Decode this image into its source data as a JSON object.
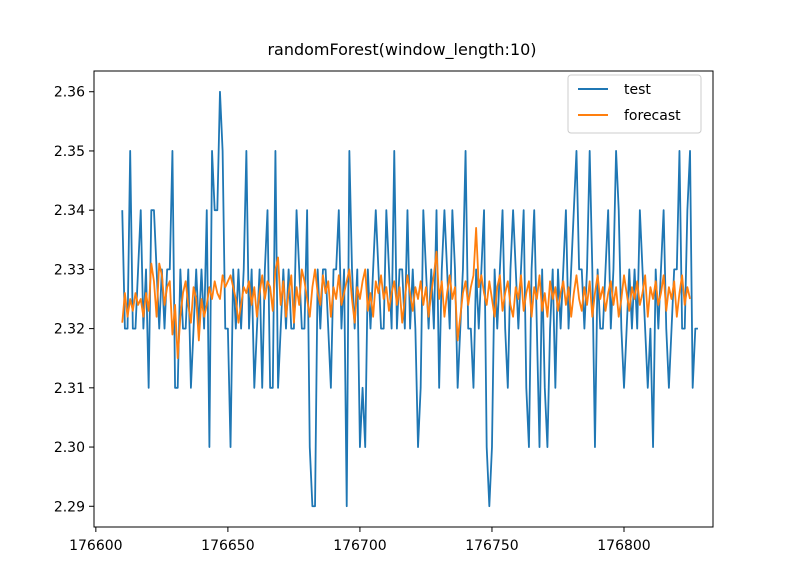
{
  "chart_data": {
    "type": "line",
    "title": "randomForest(window_length:10)",
    "xlabel": "",
    "ylabel": "",
    "xlim": [
      176599.3,
      176833.7
    ],
    "ylim": [
      2.2865,
      2.3635
    ],
    "xticks": [
      176600,
      176650,
      176700,
      176750,
      176800
    ],
    "yticks": [
      2.29,
      2.3,
      2.31,
      2.32,
      2.33,
      2.34,
      2.35,
      2.36
    ],
    "ytick_labels": [
      "2.29",
      "2.30",
      "2.31",
      "2.32",
      "2.33",
      "2.34",
      "2.35",
      "2.36"
    ],
    "legend": {
      "location": "top-right",
      "entries": [
        "test",
        "forecast"
      ]
    },
    "x_start": 176610,
    "colors": {
      "test": "#1f77b4",
      "forecast": "#ff7f0e"
    },
    "series": [
      {
        "name": "test",
        "color": "#1f77b4",
        "values": [
          2.34,
          2.32,
          2.32,
          2.35,
          2.32,
          2.32,
          2.33,
          2.34,
          2.32,
          2.33,
          2.31,
          2.34,
          2.34,
          2.33,
          2.32,
          2.33,
          2.32,
          2.33,
          2.33,
          2.35,
          2.31,
          2.31,
          2.33,
          2.32,
          2.32,
          2.33,
          2.31,
          2.32,
          2.33,
          2.32,
          2.33,
          2.32,
          2.34,
          2.3,
          2.35,
          2.34,
          2.34,
          2.36,
          2.35,
          2.32,
          2.32,
          2.3,
          2.33,
          2.32,
          2.33,
          2.32,
          2.33,
          2.35,
          2.32,
          2.33,
          2.31,
          2.32,
          2.33,
          2.31,
          2.33,
          2.34,
          2.31,
          2.31,
          2.35,
          2.31,
          2.32,
          2.33,
          2.32,
          2.33,
          2.32,
          2.32,
          2.34,
          2.33,
          2.32,
          2.32,
          2.34,
          2.3,
          2.29,
          2.29,
          2.33,
          2.32,
          2.33,
          2.33,
          2.32,
          2.31,
          2.33,
          2.33,
          2.34,
          2.32,
          2.33,
          2.29,
          2.35,
          2.33,
          2.32,
          2.33,
          2.3,
          2.31,
          2.3,
          2.33,
          2.32,
          2.33,
          2.34,
          2.33,
          2.32,
          2.32,
          2.34,
          2.33,
          2.32,
          2.35,
          2.32,
          2.33,
          2.33,
          2.32,
          2.34,
          2.32,
          2.33,
          2.32,
          2.3,
          2.31,
          2.34,
          2.33,
          2.32,
          2.33,
          2.32,
          2.34,
          2.31,
          2.33,
          2.34,
          2.33,
          2.32,
          2.34,
          2.33,
          2.31,
          2.32,
          2.33,
          2.35,
          2.32,
          2.32,
          2.31,
          2.33,
          2.32,
          2.33,
          2.34,
          2.3,
          2.29,
          2.3,
          2.33,
          2.32,
          2.33,
          2.34,
          2.32,
          2.31,
          2.33,
          2.34,
          2.33,
          2.32,
          2.33,
          2.34,
          2.31,
          2.3,
          2.33,
          2.34,
          2.32,
          2.3,
          2.33,
          2.31,
          2.3,
          2.32,
          2.33,
          2.31,
          2.33,
          2.32,
          2.33,
          2.34,
          2.32,
          2.33,
          2.34,
          2.35,
          2.33,
          2.33,
          2.32,
          2.33,
          2.35,
          2.33,
          2.3,
          2.33,
          2.32,
          2.32,
          2.33,
          2.34,
          2.32,
          2.33,
          2.35,
          2.34,
          2.32,
          2.31,
          2.32,
          2.33,
          2.32,
          2.33,
          2.32,
          2.34,
          2.33,
          2.32,
          2.31,
          2.32,
          2.3,
          2.33,
          2.32,
          2.33,
          2.34,
          2.32,
          2.31,
          2.32,
          2.33,
          2.33,
          2.35,
          2.32,
          2.32,
          2.34,
          2.35,
          2.31,
          2.32,
          2.32
        ]
      },
      {
        "name": "forecast",
        "color": "#ff7f0e",
        "values": [
          2.321,
          2.326,
          2.322,
          2.325,
          2.323,
          2.326,
          2.324,
          2.325,
          2.322,
          2.326,
          2.323,
          2.331,
          2.328,
          2.322,
          2.331,
          2.329,
          2.324,
          2.327,
          2.328,
          2.319,
          2.324,
          2.315,
          2.322,
          2.326,
          2.328,
          2.324,
          2.321,
          2.327,
          2.325,
          2.318,
          2.325,
          2.322,
          2.324,
          2.327,
          2.325,
          2.328,
          2.326,
          2.325,
          2.329,
          2.327,
          2.328,
          2.329,
          2.327,
          2.325,
          2.321,
          2.324,
          2.327,
          2.326,
          2.328,
          2.324,
          2.327,
          2.322,
          2.326,
          2.329,
          2.325,
          2.328,
          2.327,
          2.323,
          2.33,
          2.332,
          2.324,
          2.328,
          2.322,
          2.326,
          2.329,
          2.321,
          2.327,
          2.324,
          2.33,
          2.328,
          2.325,
          2.322,
          2.327,
          2.33,
          2.326,
          2.324,
          2.329,
          2.326,
          2.328,
          2.322,
          2.327,
          2.325,
          2.329,
          2.324,
          2.326,
          2.328,
          2.33,
          2.325,
          2.321,
          2.327,
          2.325,
          2.328,
          2.33,
          2.323,
          2.326,
          2.322,
          2.328,
          2.326,
          2.329,
          2.325,
          2.327,
          2.323,
          2.326,
          2.328,
          2.324,
          2.327,
          2.321,
          2.325,
          2.329,
          2.326,
          2.323,
          2.327,
          2.325,
          2.328,
          2.324,
          2.327,
          2.322,
          2.326,
          2.329,
          2.333,
          2.325,
          2.328,
          2.322,
          2.326,
          2.329,
          2.325,
          2.327,
          2.318,
          2.322,
          2.326,
          2.328,
          2.324,
          2.327,
          2.329,
          2.337,
          2.327,
          2.329,
          2.326,
          2.324,
          2.328,
          2.325,
          2.322,
          2.327,
          2.329,
          2.323,
          2.326,
          2.328,
          2.324,
          2.322,
          2.327,
          2.325,
          2.329,
          2.323,
          2.326,
          2.328,
          2.322,
          2.327,
          2.325,
          2.329,
          2.323,
          2.326,
          2.322,
          2.328,
          2.325,
          2.327,
          2.323,
          2.326,
          2.328,
          2.324,
          2.327,
          2.322,
          2.326,
          2.329,
          2.325,
          2.323,
          2.327,
          2.324,
          2.328,
          2.322,
          2.326,
          2.329,
          2.325,
          2.327,
          2.323,
          2.326,
          2.328,
          2.324,
          2.327,
          2.322,
          2.325,
          2.329,
          2.326,
          2.323,
          2.327,
          2.325,
          2.328,
          2.324,
          2.326,
          2.329,
          2.322,
          2.327,
          2.325,
          2.328,
          2.324,
          2.326,
          2.329,
          2.323,
          2.327,
          2.325,
          2.328,
          2.322,
          2.326,
          2.329,
          2.324,
          2.327,
          2.325
        ]
      }
    ]
  }
}
